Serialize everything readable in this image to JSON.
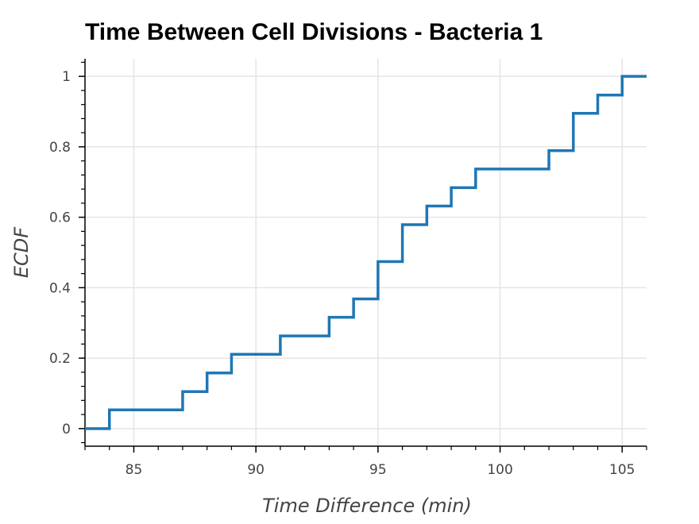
{
  "chart_data": {
    "type": "line",
    "style": "step",
    "title": "Time Between Cell Divisions - Bacteria 1",
    "xlabel": "Time Difference (min)",
    "ylabel": "ECDF",
    "xlim": [
      83,
      106
    ],
    "ylim": [
      -0.05,
      1.05
    ],
    "xticks": [
      85,
      90,
      95,
      100,
      105
    ],
    "xtick_labels": [
      "85",
      "90",
      "95",
      "100",
      "105"
    ],
    "yticks": [
      0,
      0.2,
      0.4,
      0.6,
      0.8,
      1
    ],
    "ytick_labels": [
      "0",
      "0.2",
      "0.4",
      "0.6",
      "0.8",
      "1"
    ],
    "grid": true,
    "line_color": "#1f77b4",
    "x": [
      83,
      84,
      87,
      88,
      89,
      91,
      93,
      94,
      95,
      96,
      97,
      98,
      99,
      102,
      103,
      104,
      105,
      106
    ],
    "y": [
      0,
      0.053,
      0.105,
      0.158,
      0.211,
      0.263,
      0.316,
      0.368,
      0.474,
      0.579,
      0.632,
      0.684,
      0.737,
      0.789,
      0.895,
      0.947,
      1.0,
      1.0
    ]
  }
}
